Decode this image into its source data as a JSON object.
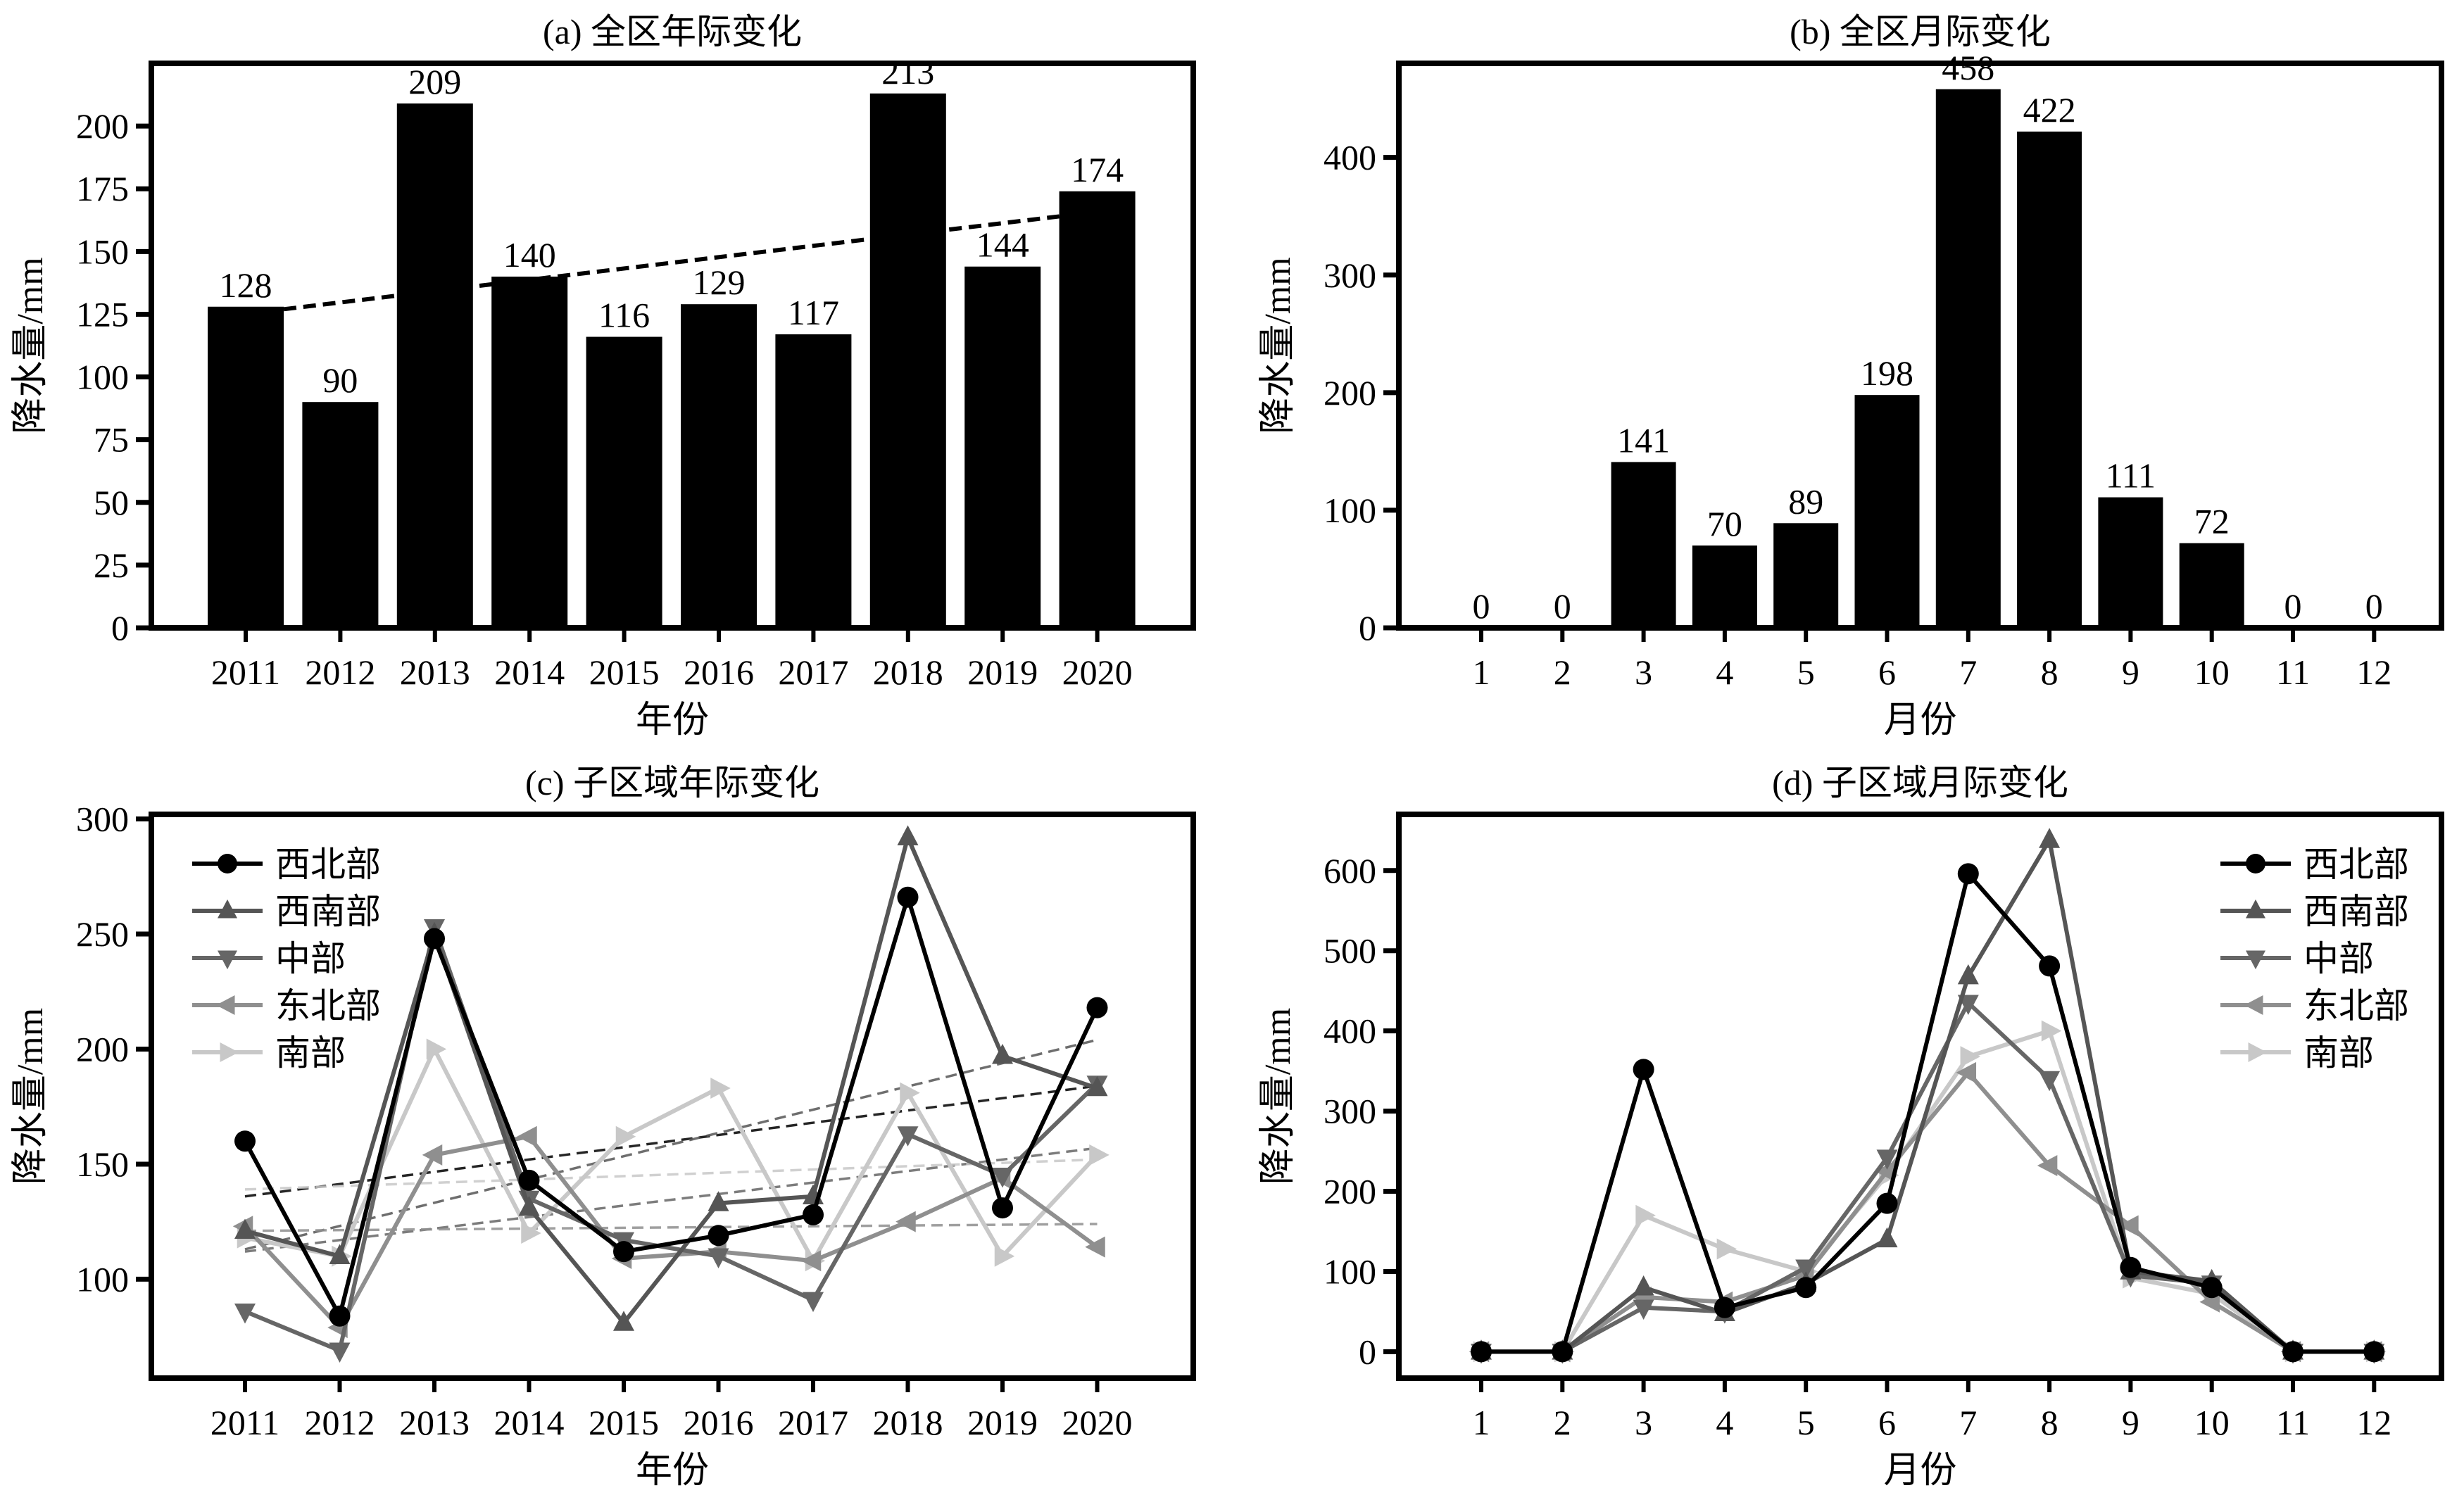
{
  "chart_data": [
    {
      "id": "a",
      "type": "bar",
      "title": "(a) 全区年际变化",
      "xlabel": "年份",
      "ylabel": "降水量/mm",
      "categories": [
        "2011",
        "2012",
        "2013",
        "2014",
        "2015",
        "2016",
        "2017",
        "2018",
        "2019",
        "2020"
      ],
      "values": [
        128,
        90,
        209,
        140,
        116,
        129,
        117,
        213,
        144,
        174
      ],
      "data_labels": [
        "128",
        "90",
        "209",
        "140",
        "116",
        "129",
        "117",
        "213",
        "144",
        "174"
      ],
      "ylim": [
        0,
        225
      ],
      "yticks": [
        0,
        25,
        50,
        75,
        100,
        125,
        150,
        175,
        200
      ],
      "ytick_labels": [
        "0",
        "25",
        "50",
        "75",
        "100",
        "125",
        "150",
        "175",
        "200"
      ],
      "trend": {
        "style": "dashed",
        "from": {
          "x": "2011",
          "y": 127
        },
        "to": {
          "x": "2020",
          "y": 164
        }
      },
      "bar_color": "#000000",
      "grid": false
    },
    {
      "id": "b",
      "type": "bar",
      "title": "(b) 全区月际变化",
      "xlabel": "月份",
      "ylabel": "降水量/mm",
      "categories": [
        "1",
        "2",
        "3",
        "4",
        "5",
        "6",
        "7",
        "8",
        "9",
        "10",
        "11",
        "12"
      ],
      "values": [
        0,
        0,
        141,
        70,
        89,
        198,
        458,
        422,
        111,
        72,
        0,
        0
      ],
      "data_labels": [
        "0",
        "0",
        "141",
        "70",
        "89",
        "198",
        "458",
        "422",
        "111",
        "72",
        "0",
        "0"
      ],
      "ylim": [
        0,
        480
      ],
      "yticks": [
        0,
        100,
        200,
        300,
        400
      ],
      "ytick_labels": [
        "0",
        "100",
        "200",
        "300",
        "400"
      ],
      "bar_color": "#000000",
      "grid": false
    },
    {
      "id": "c",
      "type": "line",
      "title": "(c) 子区域年际变化",
      "xlabel": "年份",
      "ylabel": "降水量/mm",
      "categories": [
        "2011",
        "2012",
        "2013",
        "2014",
        "2015",
        "2016",
        "2017",
        "2018",
        "2019",
        "2020"
      ],
      "ylim": [
        57,
        302
      ],
      "yticks": [
        100,
        150,
        200,
        250,
        300
      ],
      "ytick_labels": [
        "100",
        "150",
        "200",
        "250",
        "300"
      ],
      "legend_position": "top-left",
      "grid": false,
      "series": [
        {
          "name": "西北部",
          "marker": "circle",
          "color": "#000000",
          "values": [
            160,
            84,
            248,
            143,
            112,
            119,
            128,
            266,
            131,
            218
          ],
          "trend": [
            136,
            184
          ]
        },
        {
          "name": "西南部",
          "marker": "triangle-up",
          "color": "#555555",
          "values": [
            121,
            110,
            250,
            131,
            81,
            133,
            136,
            292,
            197,
            183
          ],
          "trend": [
            113,
            204
          ]
        },
        {
          "name": "中部",
          "marker": "triangle-down",
          "color": "#666666",
          "values": [
            86,
            69,
            253,
            135,
            117,
            110,
            91,
            163,
            145,
            185
          ],
          "trend": [
            112,
            157
          ]
        },
        {
          "name": "东北部",
          "marker": "triangle-left",
          "color": "#8f8f8f",
          "values": [
            123,
            79,
            154,
            162,
            109,
            112,
            108,
            125,
            144,
            114
          ],
          "trend": [
            121,
            124
          ]
        },
        {
          "name": "南部",
          "marker": "triangle-right",
          "color": "#c8c8c8",
          "values": [
            118,
            110,
            200,
            120,
            162,
            183,
            108,
            181,
            110,
            154
          ],
          "trend": [
            139,
            152
          ]
        }
      ]
    },
    {
      "id": "d",
      "type": "line",
      "title": "(d) 子区域月际变化",
      "xlabel": "月份",
      "ylabel": "降水量/mm",
      "categories": [
        "1",
        "2",
        "3",
        "4",
        "5",
        "6",
        "7",
        "8",
        "9",
        "10",
        "11",
        "12"
      ],
      "ylim": [
        -33,
        670
      ],
      "yticks": [
        0,
        100,
        200,
        300,
        400,
        500,
        600
      ],
      "ytick_labels": [
        "0",
        "100",
        "200",
        "300",
        "400",
        "500",
        "600"
      ],
      "legend_position": "top-right",
      "grid": false,
      "series": [
        {
          "name": "西北部",
          "marker": "circle",
          "color": "#000000",
          "values": [
            0,
            0,
            352,
            55,
            80,
            185,
            596,
            481,
            105,
            80,
            0,
            0
          ]
        },
        {
          "name": "西南部",
          "marker": "triangle-up",
          "color": "#555555",
          "values": [
            0,
            0,
            80,
            48,
            85,
            140,
            468,
            638,
            100,
            88,
            0,
            0
          ]
        },
        {
          "name": "中部",
          "marker": "triangle-down",
          "color": "#666666",
          "values": [
            0,
            0,
            55,
            50,
            105,
            242,
            435,
            340,
            95,
            85,
            0,
            0
          ]
        },
        {
          "name": "东北部",
          "marker": "triangle-left",
          "color": "#8f8f8f",
          "values": [
            0,
            0,
            68,
            62,
            95,
            225,
            348,
            232,
            157,
            62,
            0,
            0
          ]
        },
        {
          "name": "南部",
          "marker": "triangle-right",
          "color": "#c8c8c8",
          "values": [
            0,
            0,
            170,
            128,
            100,
            220,
            368,
            400,
            92,
            72,
            0,
            0
          ]
        }
      ]
    }
  ]
}
